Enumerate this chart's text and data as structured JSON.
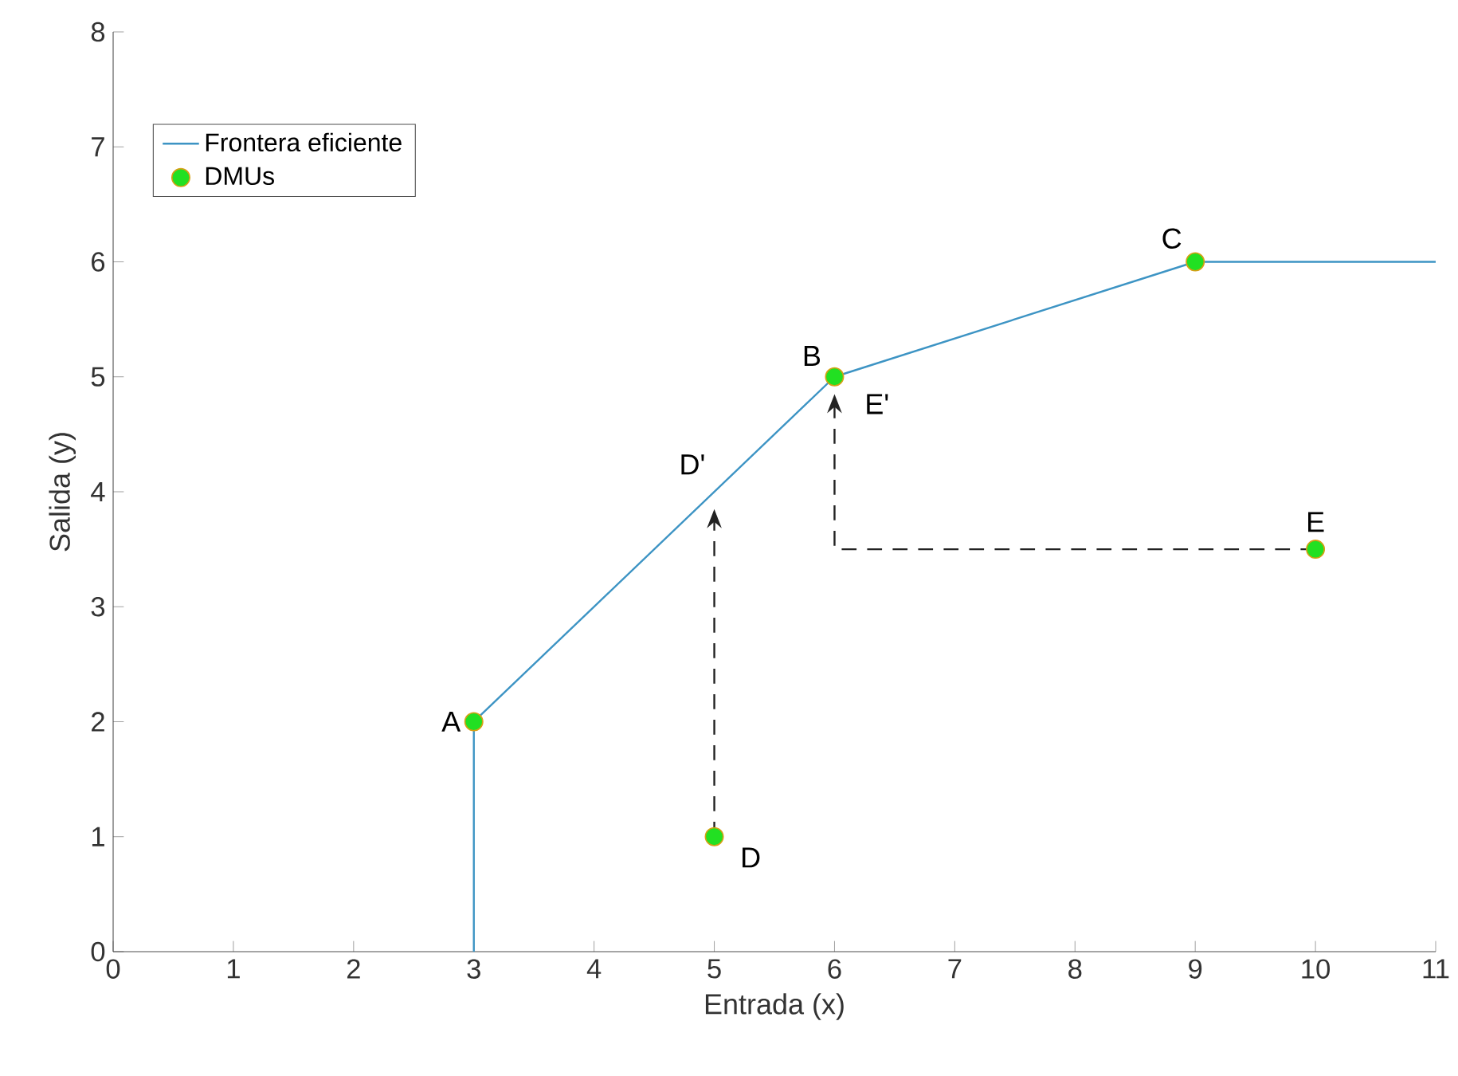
{
  "chart_data": {
    "type": "line",
    "xlabel": "Entrada (x)",
    "ylabel": "Salida (y)",
    "xlim": [
      0,
      11
    ],
    "ylim": [
      0,
      8
    ],
    "xticks": [
      0,
      1,
      2,
      3,
      4,
      5,
      6,
      7,
      8,
      9,
      10,
      11
    ],
    "yticks": [
      0,
      1,
      2,
      3,
      4,
      5,
      6,
      7,
      8
    ],
    "legend": "top left",
    "grid": false,
    "series": [
      {
        "name": "Frontera eficiente",
        "color": "#3d94c4",
        "line_style": "solid",
        "marker": "none",
        "x": [
          3,
          3,
          6,
          9,
          11
        ],
        "values": [
          0,
          2,
          5,
          6,
          6
        ]
      },
      {
        "name": "DMUs",
        "type": "scatter",
        "color": "#22e022",
        "marker": "circle",
        "x": [
          3,
          5,
          6,
          9,
          10
        ],
        "values": [
          2,
          1,
          5,
          6,
          3.5
        ]
      },
      {
        "color": "#222222",
        "line_style": "dashed",
        "marker": "none",
        "x": [
          5,
          5
        ],
        "values": [
          1,
          3.85
        ]
      },
      {
        "color": "#222222",
        "line_style": "dashed",
        "marker": "none",
        "x": [
          10,
          6,
          6
        ],
        "values": [
          3.5,
          3.5,
          4.85
        ]
      }
    ],
    "annotations": [
      {
        "text": "A",
        "x": 3,
        "y": 2
      },
      {
        "text": "B",
        "x": 6,
        "y": 5
      },
      {
        "text": "C",
        "x": 9,
        "y": 6
      },
      {
        "text": "D",
        "x": 5,
        "y": 1
      },
      {
        "text": "E",
        "x": 10,
        "y": 3.5
      },
      {
        "text": "D'",
        "x": 5,
        "y": 4
      },
      {
        "text": "E'",
        "x": 6,
        "y": 5
      }
    ]
  }
}
